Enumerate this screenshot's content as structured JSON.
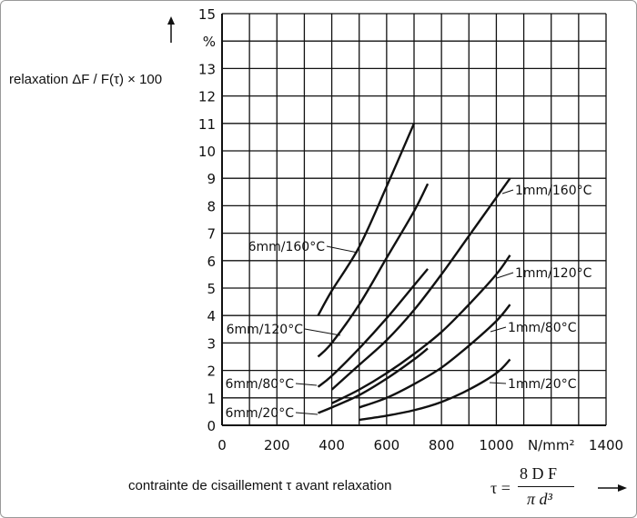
{
  "chart_data": {
    "type": "line",
    "title": "",
    "ylabel": "relaxation ΔF / F(τ) × 100",
    "yunit": "%",
    "xlabel": "contrainte de cisaillement τ avant relaxation",
    "xunit": "N/mm²",
    "formula": {
      "lhs": "τ =",
      "numerator": "8 D F",
      "denominator": "π d³"
    },
    "xlim": [
      0,
      1400
    ],
    "ylim": [
      0,
      15
    ],
    "grid": true,
    "xticks": [
      "0",
      "200",
      "400",
      "600",
      "800",
      "1000",
      "N/mm²",
      "1400"
    ],
    "yticks": [
      "0",
      "1",
      "2",
      "3",
      "4",
      "5",
      "6",
      "7",
      "8",
      "9",
      "10",
      "11",
      "12",
      "13",
      "%",
      "15"
    ],
    "series": [
      {
        "name": "6mm/160°C",
        "x": [
          350,
          400,
          500,
          600,
          700
        ],
        "y": [
          4,
          4.9,
          6.5,
          8.7,
          11
        ]
      },
      {
        "name": "6mm/120°C",
        "x": [
          350,
          400,
          500,
          600,
          700,
          750
        ],
        "y": [
          2.5,
          3,
          4.4,
          6.1,
          7.8,
          8.8
        ]
      },
      {
        "name": "6mm/80°C",
        "x": [
          350,
          400,
          500,
          600,
          700,
          750
        ],
        "y": [
          1.4,
          1.8,
          2.8,
          3.9,
          5.1,
          5.7
        ]
      },
      {
        "name": "6mm/20°C",
        "x": [
          350,
          400,
          500,
          600,
          700,
          750
        ],
        "y": [
          0.45,
          0.65,
          1.1,
          1.7,
          2.4,
          2.8
        ]
      },
      {
        "name": "1mm/160°C",
        "x": [
          400,
          500,
          600,
          700,
          800,
          900,
          1000,
          1050
        ],
        "y": [
          1.3,
          2.2,
          3.1,
          4.2,
          5.5,
          6.9,
          8.3,
          9
        ]
      },
      {
        "name": "1mm/120°C",
        "x": [
          400,
          500,
          600,
          700,
          800,
          900,
          1000,
          1050
        ],
        "y": [
          0.8,
          1.3,
          1.9,
          2.6,
          3.4,
          4.4,
          5.5,
          6.2
        ]
      },
      {
        "name": "1mm/80°C",
        "x": [
          500,
          600,
          700,
          800,
          900,
          1000,
          1050
        ],
        "y": [
          0.65,
          1.0,
          1.5,
          2.1,
          2.9,
          3.8,
          4.4
        ]
      },
      {
        "name": "1mm/20°C",
        "x": [
          500,
          600,
          700,
          800,
          900,
          1000,
          1050
        ],
        "y": [
          0.2,
          0.35,
          0.55,
          0.85,
          1.3,
          1.9,
          2.4
        ]
      }
    ]
  }
}
